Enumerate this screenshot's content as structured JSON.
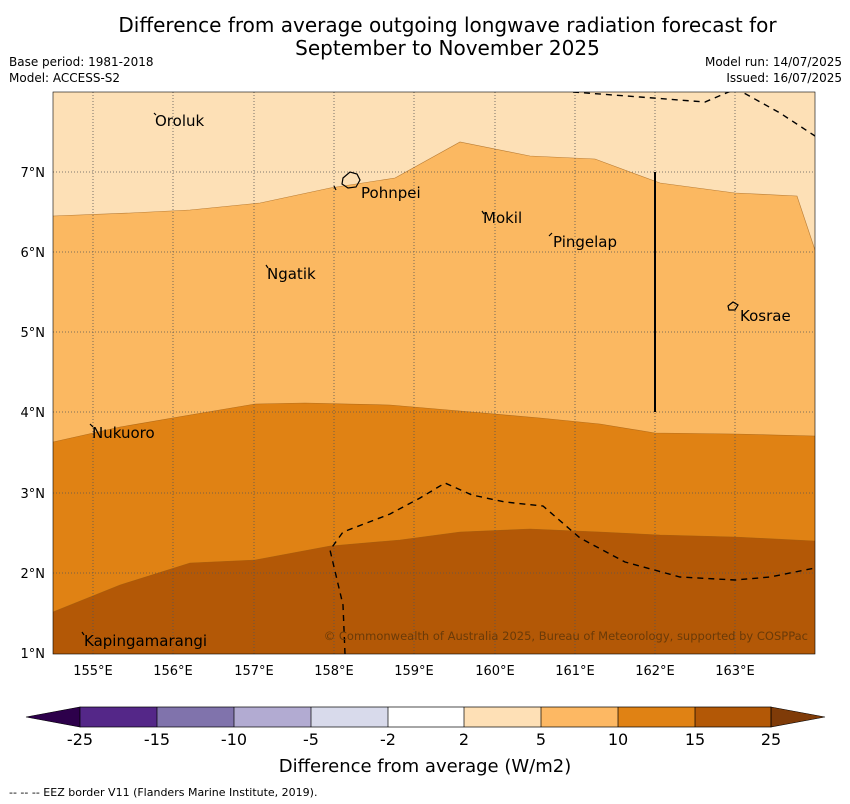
{
  "header": {
    "title_line1": "Difference from average outgoing longwave radiation forecast for",
    "title_line2": "September to November 2025",
    "base_period": "Base period: 1981-2018",
    "model": "Model: ACCESS-S2",
    "model_run": "Model run: 14/07/2025",
    "issued": "Issued: 16/07/2025"
  },
  "map": {
    "lon_ticks": [
      "155°E",
      "156°E",
      "157°E",
      "158°E",
      "159°E",
      "160°E",
      "161°E",
      "162°E",
      "163°E"
    ],
    "lat_ticks": [
      "7°N",
      "6°N",
      "5°N",
      "4°N",
      "3°N",
      "2°N",
      "1°N"
    ],
    "place_labels": {
      "oroluk": "Oroluk",
      "pohnpei": "Pohnpei",
      "mokil": "Mokil",
      "pingelap": "Pingelap",
      "ngatik": "Ngatik",
      "kosrae": "Kosrae",
      "nukuoro": "Nukuoro",
      "kapingamarangi": "Kapingamarangi"
    },
    "credit": "© Commonwealth of Australia 2025, Bureau of Meteorology, supported by COSPPac",
    "fill_colors": {
      "band_2_5": "#fde0b6",
      "band_5_10": "#fbb861",
      "band_10_15": "#e08214",
      "band_15_25": "#b35806"
    }
  },
  "colorbar": {
    "tick_labels": [
      "-25",
      "-15",
      "-10",
      "-5",
      "-2",
      "2",
      "5",
      "10",
      "15",
      "25"
    ],
    "colors": [
      "#2d004b",
      "#542788",
      "#8073ac",
      "#b2abd2",
      "#d8daeb",
      "#ffffff",
      "#fee0b6",
      "#fdb863",
      "#e08214",
      "#b35806",
      "#7f3b08"
    ],
    "label": "Difference from average (W/m2)"
  },
  "footer": {
    "eez_note": "--  --  -- EEZ border V11 (Flanders Marine Institute, 2019)."
  }
}
